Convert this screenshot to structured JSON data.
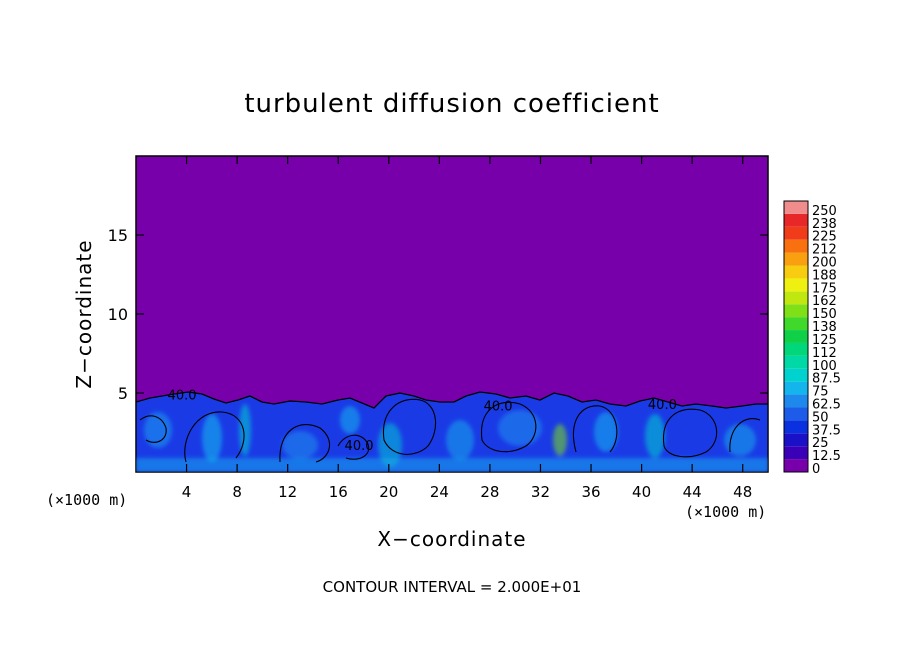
{
  "chart_data": {
    "type": "heatmap",
    "title": "turbulent diffusion coefficient",
    "xlabel": "X−coordinate",
    "ylabel": "Z−coordinate",
    "x_unit_left": "(×1000 m)",
    "x_unit_right": "(×1000 m)",
    "footer": "CONTOUR INTERVAL = 2.000E+01",
    "xlim": [
      0,
      50
    ],
    "ylim": [
      0,
      20
    ],
    "x_ticks": [
      4,
      8,
      12,
      16,
      20,
      24,
      28,
      32,
      36,
      40,
      44,
      48
    ],
    "y_ticks": [
      5,
      10,
      15
    ],
    "background_value": 0,
    "contour_labels": [
      {
        "text": "40.0",
        "x": 2.5,
        "y": 4.6
      },
      {
        "text": "40.0",
        "x": 16.5,
        "y": 1.4
      },
      {
        "text": "40.0",
        "x": 27.5,
        "y": 3.9
      },
      {
        "text": "40.0",
        "x": 40.5,
        "y": 4.0
      }
    ],
    "colorbar": {
      "levels": [
        "0",
        "12.5",
        "25",
        "37.5",
        "50",
        "62.5",
        "75",
        "87.5",
        "100",
        "112",
        "125",
        "138",
        "150",
        "162",
        "175",
        "188",
        "200",
        "212",
        "225",
        "238",
        "250"
      ],
      "colors": [
        "#7700aa",
        "#3a00b8",
        "#1a10c8",
        "#0a30e0",
        "#1c5ce8",
        "#1e88ec",
        "#14b4ec",
        "#00d2d0",
        "#00d8a6",
        "#00d67a",
        "#10d048",
        "#40d82a",
        "#80e018",
        "#c0e810",
        "#f0f010",
        "#f8cc10",
        "#f8a010",
        "#f87010",
        "#f03c18",
        "#e82828",
        "#f08c8c"
      ]
    },
    "colors": {
      "background": "#7700aa",
      "turbulent": "#1a3ae6",
      "contour": "#000000"
    }
  }
}
